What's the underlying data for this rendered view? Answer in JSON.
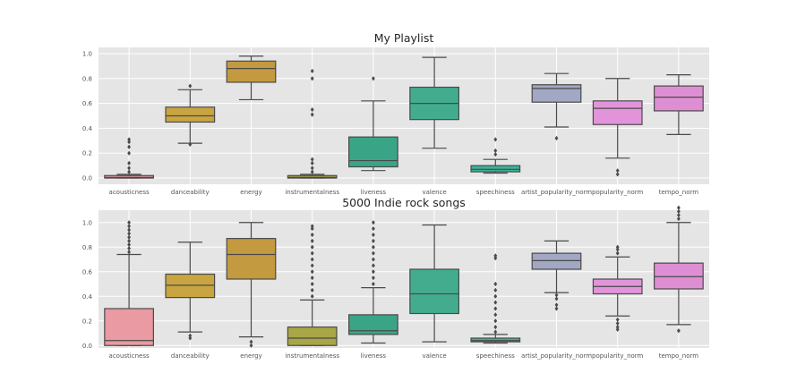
{
  "chart_data": [
    {
      "type": "box",
      "title": "My Playlist",
      "xlabel": "",
      "ylabel": "",
      "ylim": [
        -0.05,
        1.05
      ],
      "yticks": [
        "0.0",
        "0.2",
        "0.4",
        "0.6",
        "0.8",
        "1.0"
      ],
      "grid": true,
      "categories": [
        "acousticness",
        "danceability",
        "energy",
        "instrumentalness",
        "liveness",
        "valence",
        "speechiness",
        "artist_popularity_norm",
        "popularity_norm",
        "tempo_norm"
      ],
      "colors": [
        "#e99aa2",
        "#c9a541",
        "#c39a40",
        "#a8a647",
        "#3aa586",
        "#43ac8f",
        "#3db196",
        "#a2a7c4",
        "#e294db",
        "#de8fd4"
      ],
      "boxes": [
        {
          "whislo": 0.0,
          "q1": 0.0,
          "med": 0.005,
          "q3": 0.02,
          "whishi": 0.03,
          "fliers": [
            0.05,
            0.08,
            0.12,
            0.2,
            0.25,
            0.29,
            0.31
          ]
        },
        {
          "whislo": 0.28,
          "q1": 0.45,
          "med": 0.5,
          "q3": 0.57,
          "whishi": 0.71,
          "fliers": [
            0.27,
            0.74
          ]
        },
        {
          "whislo": 0.63,
          "q1": 0.77,
          "med": 0.88,
          "q3": 0.94,
          "whishi": 0.98,
          "fliers": []
        },
        {
          "whislo": 0.0,
          "q1": 0.0,
          "med": 0.005,
          "q3": 0.02,
          "whishi": 0.03,
          "fliers": [
            0.05,
            0.08,
            0.12,
            0.15,
            0.51,
            0.55,
            0.8,
            0.86
          ]
        },
        {
          "whislo": 0.06,
          "q1": 0.09,
          "med": 0.14,
          "q3": 0.33,
          "whishi": 0.62,
          "fliers": [
            0.8
          ]
        },
        {
          "whislo": 0.24,
          "q1": 0.47,
          "med": 0.6,
          "q3": 0.73,
          "whishi": 0.97,
          "fliers": []
        },
        {
          "whislo": 0.04,
          "q1": 0.05,
          "med": 0.07,
          "q3": 0.1,
          "whishi": 0.15,
          "fliers": [
            0.19,
            0.22,
            0.31
          ]
        },
        {
          "whislo": 0.41,
          "q1": 0.61,
          "med": 0.72,
          "q3": 0.75,
          "whishi": 0.84,
          "fliers": [
            0.32
          ]
        },
        {
          "whislo": 0.16,
          "q1": 0.43,
          "med": 0.56,
          "q3": 0.62,
          "whishi": 0.8,
          "fliers": [
            0.03,
            0.06
          ]
        },
        {
          "whislo": 0.35,
          "q1": 0.54,
          "med": 0.65,
          "q3": 0.74,
          "whishi": 0.83,
          "fliers": []
        }
      ]
    },
    {
      "type": "box",
      "title": "5000 Indie rock songs",
      "xlabel": "",
      "ylabel": "",
      "ylim": [
        -0.02,
        1.1
      ],
      "yticks": [
        "0.0",
        "0.2",
        "0.4",
        "0.6",
        "0.8",
        "1.0"
      ],
      "grid": true,
      "categories": [
        "acousticness",
        "danceability",
        "energy",
        "instrumentalness",
        "liveness",
        "valence",
        "speechiness",
        "artist_popularity_norm",
        "popularity_norm",
        "tempo_norm"
      ],
      "colors": [
        "#e99aa2",
        "#c9a541",
        "#c39a40",
        "#a8a647",
        "#3aa586",
        "#43ac8f",
        "#3db196",
        "#a2a7c4",
        "#e294db",
        "#de8fd4"
      ],
      "boxes": [
        {
          "whislo": 0.0,
          "q1": 0.0,
          "med": 0.04,
          "q3": 0.3,
          "whishi": 0.74,
          "fliers": [
            0.76,
            0.79,
            0.82,
            0.85,
            0.88,
            0.91,
            0.94,
            0.97,
            1.0
          ]
        },
        {
          "whislo": 0.11,
          "q1": 0.39,
          "med": 0.49,
          "q3": 0.58,
          "whishi": 0.84,
          "fliers": [
            0.06,
            0.08
          ]
        },
        {
          "whislo": 0.07,
          "q1": 0.54,
          "med": 0.74,
          "q3": 0.87,
          "whishi": 1.0,
          "fliers": [
            0.0,
            0.03
          ]
        },
        {
          "whislo": 0.0,
          "q1": 0.0,
          "med": 0.06,
          "q3": 0.15,
          "whishi": 0.37,
          "fliers": [
            0.4,
            0.45,
            0.5,
            0.55,
            0.6,
            0.65,
            0.7,
            0.75,
            0.8,
            0.85,
            0.9,
            0.95,
            0.97
          ]
        },
        {
          "whislo": 0.02,
          "q1": 0.09,
          "med": 0.12,
          "q3": 0.25,
          "whishi": 0.47,
          "fliers": [
            0.5,
            0.55,
            0.6,
            0.65,
            0.7,
            0.75,
            0.8,
            0.85,
            0.9,
            0.95,
            1.0
          ]
        },
        {
          "whislo": 0.03,
          "q1": 0.26,
          "med": 0.42,
          "q3": 0.62,
          "whishi": 0.98,
          "fliers": []
        },
        {
          "whislo": 0.02,
          "q1": 0.03,
          "med": 0.04,
          "q3": 0.06,
          "whishi": 0.09,
          "fliers": [
            0.11,
            0.15,
            0.2,
            0.25,
            0.3,
            0.35,
            0.4,
            0.45,
            0.5,
            0.71,
            0.73
          ]
        },
        {
          "whislo": 0.43,
          "q1": 0.62,
          "med": 0.69,
          "q3": 0.75,
          "whishi": 0.85,
          "fliers": [
            0.3,
            0.33,
            0.38,
            0.41
          ]
        },
        {
          "whislo": 0.24,
          "q1": 0.42,
          "med": 0.48,
          "q3": 0.54,
          "whishi": 0.72,
          "fliers": [
            0.13,
            0.15,
            0.18,
            0.21,
            0.75,
            0.78,
            0.8
          ]
        },
        {
          "whislo": 0.17,
          "q1": 0.46,
          "med": 0.56,
          "q3": 0.67,
          "whishi": 1.0,
          "fliers": [
            0.12,
            1.03,
            1.06,
            1.09,
            1.12
          ]
        }
      ]
    }
  ]
}
